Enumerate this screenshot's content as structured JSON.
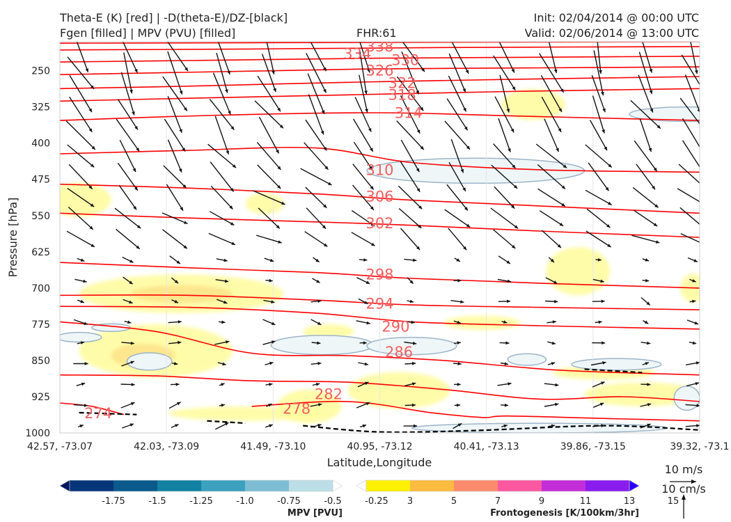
{
  "header": {
    "title_left_1": "Theta-E (K) [red] | -D(theta-E)/DZ-[black]",
    "title_left_2": "Fgen [filled] | MPV (PVU) [filled]",
    "fhr": "FHR:61",
    "init": "Init: 02/04/2014 @ 00:00 UTC",
    "valid": "Valid: 02/06/2014 @ 13:00 UTC"
  },
  "chart_data": {
    "type": "cross-section",
    "xlabel": "Latitude,Longitude",
    "ylabel": "Pressure [hPa]",
    "x_ticks": [
      "42.57, -73.07",
      "42.03, -73.09",
      "41.49, -73.10",
      "40.95, -73.12",
      "40.41, -73.13",
      "39.86, -73.15",
      "39.32, -73.1"
    ],
    "y_ticks": [
      250,
      325,
      400,
      475,
      550,
      625,
      700,
      775,
      850,
      925,
      1000
    ],
    "ylim": [
      1000,
      190
    ],
    "theta_e_contours": [
      {
        "label": "338",
        "level": 338,
        "pts": [
          [
            0,
            193
          ],
          [
            0.3,
            192
          ],
          [
            0.6,
            191
          ],
          [
            1,
            190
          ]
        ]
      },
      {
        "label": "334",
        "level": 334,
        "pts": [
          [
            0,
            207
          ],
          [
            0.3,
            205
          ],
          [
            0.6,
            202
          ],
          [
            1,
            200
          ]
        ]
      },
      {
        "label": "330",
        "level": 330,
        "pts": [
          [
            0,
            232
          ],
          [
            0.25,
            228
          ],
          [
            0.5,
            224
          ],
          [
            0.75,
            222
          ],
          [
            1,
            220
          ]
        ]
      },
      {
        "label": "326",
        "level": 326,
        "pts": [
          [
            0,
            258
          ],
          [
            0.25,
            252
          ],
          [
            0.5,
            246
          ],
          [
            0.75,
            244
          ],
          [
            1,
            242
          ]
        ]
      },
      {
        "label": "322",
        "level": 322,
        "pts": [
          [
            0,
            287
          ],
          [
            0.2,
            282
          ],
          [
            0.45,
            274
          ],
          [
            0.7,
            268
          ],
          [
            1,
            262
          ]
        ]
      },
      {
        "label": "318",
        "level": 318,
        "pts": [
          [
            0,
            313
          ],
          [
            0.2,
            307
          ],
          [
            0.45,
            300
          ],
          [
            0.7,
            293
          ],
          [
            1,
            287
          ]
        ]
      },
      {
        "label": "314",
        "level": 314,
        "pts": [
          [
            0,
            353
          ],
          [
            0.25,
            342
          ],
          [
            0.5,
            337
          ],
          [
            0.72,
            344
          ],
          [
            1,
            353
          ]
        ]
      },
      {
        "label": "310",
        "level": 310,
        "pts": [
          [
            0,
            422
          ],
          [
            0.2,
            415
          ],
          [
            0.4,
            410
          ],
          [
            0.55,
            440
          ],
          [
            0.75,
            455
          ],
          [
            1,
            460
          ]
        ]
      },
      {
        "label": "306",
        "level": 306,
        "pts": [
          [
            0,
            485
          ],
          [
            0.2,
            493
          ],
          [
            0.4,
            505
          ],
          [
            0.55,
            518
          ],
          [
            0.75,
            530
          ],
          [
            1,
            545
          ]
        ]
      },
      {
        "label": "302",
        "level": 302,
        "pts": [
          [
            0,
            545
          ],
          [
            0.2,
            555
          ],
          [
            0.4,
            563
          ],
          [
            0.55,
            570
          ],
          [
            0.75,
            582
          ],
          [
            1,
            595
          ]
        ]
      },
      {
        "label": "298",
        "level": 298,
        "pts": [
          [
            0,
            647
          ],
          [
            0.2,
            658
          ],
          [
            0.4,
            668
          ],
          [
            0.55,
            680
          ],
          [
            0.75,
            690
          ],
          [
            1,
            700
          ]
        ]
      },
      {
        "label": "294",
        "level": 294,
        "pts": [
          [
            0,
            715
          ],
          [
            0.2,
            715
          ],
          [
            0.4,
            725
          ],
          [
            0.55,
            735
          ],
          [
            0.75,
            740
          ],
          [
            1,
            745
          ]
        ]
      },
      {
        "label": "290",
        "level": 290,
        "pts": [
          [
            0,
            738
          ],
          [
            0.2,
            740
          ],
          [
            0.4,
            752
          ],
          [
            0.55,
            770
          ],
          [
            0.75,
            778
          ],
          [
            1,
            785
          ]
        ]
      },
      {
        "label": "286",
        "level": 286,
        "pts": [
          [
            0,
            770
          ],
          [
            0.15,
            790
          ],
          [
            0.3,
            835
          ],
          [
            0.45,
            840
          ],
          [
            0.6,
            850
          ],
          [
            0.78,
            870
          ],
          [
            1,
            880
          ]
        ]
      },
      {
        "label": "282",
        "level": 282,
        "pts": [
          [
            0,
            880
          ],
          [
            0.15,
            882
          ],
          [
            0.3,
            892
          ],
          [
            0.45,
            895
          ],
          [
            0.6,
            910
          ],
          [
            0.75,
            930
          ],
          [
            0.88,
            925
          ],
          [
            1,
            935
          ]
        ]
      },
      {
        "label": "278",
        "level": 278,
        "pts": [
          [
            0.3,
            945
          ],
          [
            0.45,
            935
          ],
          [
            0.58,
            958
          ],
          [
            0.66,
            968
          ],
          [
            0.7,
            965
          ],
          [
            0.85,
            970
          ],
          [
            1,
            975
          ]
        ]
      },
      {
        "label": "274",
        "level": 274,
        "pts": [
          [
            0,
            938
          ],
          [
            0.05,
            945
          ],
          [
            0.1,
            962
          ]
        ]
      }
    ],
    "contour_label_positions": [
      {
        "label": "338",
        "x": 0.5,
        "p": 200
      },
      {
        "label": "334",
        "x": 0.465,
        "p": 215
      },
      {
        "label": "330",
        "x": 0.54,
        "p": 228
      },
      {
        "label": "326",
        "x": 0.5,
        "p": 250
      },
      {
        "label": "322",
        "x": 0.535,
        "p": 276
      },
      {
        "label": "318",
        "x": 0.535,
        "p": 300
      },
      {
        "label": "314",
        "x": 0.545,
        "p": 338
      },
      {
        "label": "310",
        "x": 0.5,
        "p": 456
      },
      {
        "label": "306",
        "x": 0.5,
        "p": 511
      },
      {
        "label": "302",
        "x": 0.5,
        "p": 566
      },
      {
        "label": "298",
        "x": 0.5,
        "p": 672
      },
      {
        "label": "294",
        "x": 0.5,
        "p": 733
      },
      {
        "label": "290",
        "x": 0.525,
        "p": 780
      },
      {
        "label": "286",
        "x": 0.53,
        "p": 833
      },
      {
        "label": "282",
        "x": 0.42,
        "p": 920
      },
      {
        "label": "278",
        "x": 0.37,
        "p": 950
      },
      {
        "label": "274",
        "x": 0.06,
        "p": 960
      }
    ],
    "fgen_regions": [
      {
        "level": 3,
        "cx": 0.03,
        "p": 517,
        "rx": 0.05,
        "rp": 35
      },
      {
        "level": 3,
        "cx": 0.32,
        "p": 525,
        "rx": 0.03,
        "rp": 22
      },
      {
        "level": 3,
        "cx": 0.19,
        "p": 712,
        "rx": 0.16,
        "rp": 40
      },
      {
        "level": 5,
        "cx": 0.19,
        "p": 712,
        "rx": 0.08,
        "rp": 18
      },
      {
        "level": 3,
        "cx": 0.15,
        "p": 830,
        "rx": 0.12,
        "rp": 55
      },
      {
        "level": 5,
        "cx": 0.13,
        "p": 840,
        "rx": 0.05,
        "rp": 25
      },
      {
        "level": 3,
        "cx": 0.29,
        "p": 960,
        "rx": 0.12,
        "rp": 15
      },
      {
        "level": 3,
        "cx": 0.39,
        "p": 945,
        "rx": 0.05,
        "rp": 35
      },
      {
        "level": 3,
        "cx": 0.53,
        "p": 912,
        "rx": 0.08,
        "rp": 38
      },
      {
        "level": 3,
        "cx": 0.74,
        "p": 320,
        "rx": 0.05,
        "rp": 32
      },
      {
        "level": 3,
        "cx": 0.81,
        "p": 665,
        "rx": 0.05,
        "rp": 50
      },
      {
        "level": 3,
        "cx": 0.66,
        "p": 772,
        "rx": 0.06,
        "rp": 15
      },
      {
        "level": 3,
        "cx": 0.91,
        "p": 920,
        "rx": 0.09,
        "rp": 25
      },
      {
        "level": 3,
        "cx": 0.85,
        "p": 875,
        "rx": 0.08,
        "rp": 15
      },
      {
        "level": 3,
        "cx": 0.99,
        "p": 700,
        "rx": 0.02,
        "rp": 30
      },
      {
        "level": 3,
        "cx": 0.42,
        "p": 790,
        "rx": 0.04,
        "rp": 15
      }
    ],
    "mpv_regions": [
      {
        "cx": 0.65,
        "p": 457,
        "rx": 0.17,
        "rp": 26
      },
      {
        "cx": 0.03,
        "p": 802,
        "rx": 0.035,
        "rp": 10
      },
      {
        "cx": 0.08,
        "p": 782,
        "rx": 0.03,
        "rp": 8
      },
      {
        "cx": 0.14,
        "p": 852,
        "rx": 0.035,
        "rp": 18
      },
      {
        "cx": 0.41,
        "p": 818,
        "rx": 0.08,
        "rp": 20
      },
      {
        "cx": 0.55,
        "p": 820,
        "rx": 0.07,
        "rp": 18
      },
      {
        "cx": 0.98,
        "p": 340,
        "rx": 0.09,
        "rp": 15
      },
      {
        "cx": 0.73,
        "p": 848,
        "rx": 0.03,
        "rp": 12
      },
      {
        "cx": 0.87,
        "p": 858,
        "rx": 0.07,
        "rp": 12
      },
      {
        "cx": 0.98,
        "p": 928,
        "rx": 0.02,
        "rp": 25
      },
      {
        "cx": 0.75,
        "p": 990,
        "rx": 0.2,
        "rp": 10
      }
    ],
    "ddz_dashed": [
      [
        [
          0.03,
          958
        ],
        [
          0.12,
          962
        ]
      ],
      [
        [
          0.23,
          975
        ],
        [
          0.29,
          980
        ]
      ],
      [
        [
          0.38,
          985
        ],
        [
          0.5,
          998
        ],
        [
          0.65,
          995
        ],
        [
          0.85,
          985
        ],
        [
          1,
          994
        ]
      ],
      [
        [
          0.82,
          868
        ],
        [
          0.91,
          875
        ]
      ]
    ],
    "wind_vectors": {
      "nx": 14,
      "ny": 19,
      "u_upper": -0.35,
      "v_upper": -1.0,
      "u_lower": -0.9,
      "v_lower": 0.25
    },
    "legend": {
      "mpv": {
        "label": "MPV [PVU]",
        "ticks": [
          "-1.75",
          "-1.5",
          "-1.25",
          "-1.0",
          "-0.75",
          "-0.5",
          "-0.25"
        ],
        "colors": [
          "#041860",
          "#07357a",
          "#0a5a8e",
          "#1381a3",
          "#3ca0bf",
          "#7dbdd4",
          "#bcdfe7",
          "#ffffff"
        ]
      },
      "fgen": {
        "label": "Frontogenesis [K/100km/3hr]",
        "ticks": [
          "3",
          "5",
          "7",
          "9",
          "11",
          "13",
          "15"
        ],
        "colors": [
          "#ffffff",
          "#fff200",
          "#fdbb40",
          "#fc8a6c",
          "#fa58a0",
          "#c42ed8",
          "#8a1cee",
          "#2a00ff"
        ]
      }
    },
    "quiver_key": {
      "label1": "10 m/s",
      "label2": "10 cm/s"
    },
    "colors": {
      "theta_e": "#ff0000",
      "theta_e_label": "#f06060",
      "mpv_fill": "#eef6f8",
      "mpv_edge": "#9db4c8",
      "fgen_3": "#fffca0",
      "fgen_5": "#fde58c",
      "vectors": "#111111"
    }
  }
}
